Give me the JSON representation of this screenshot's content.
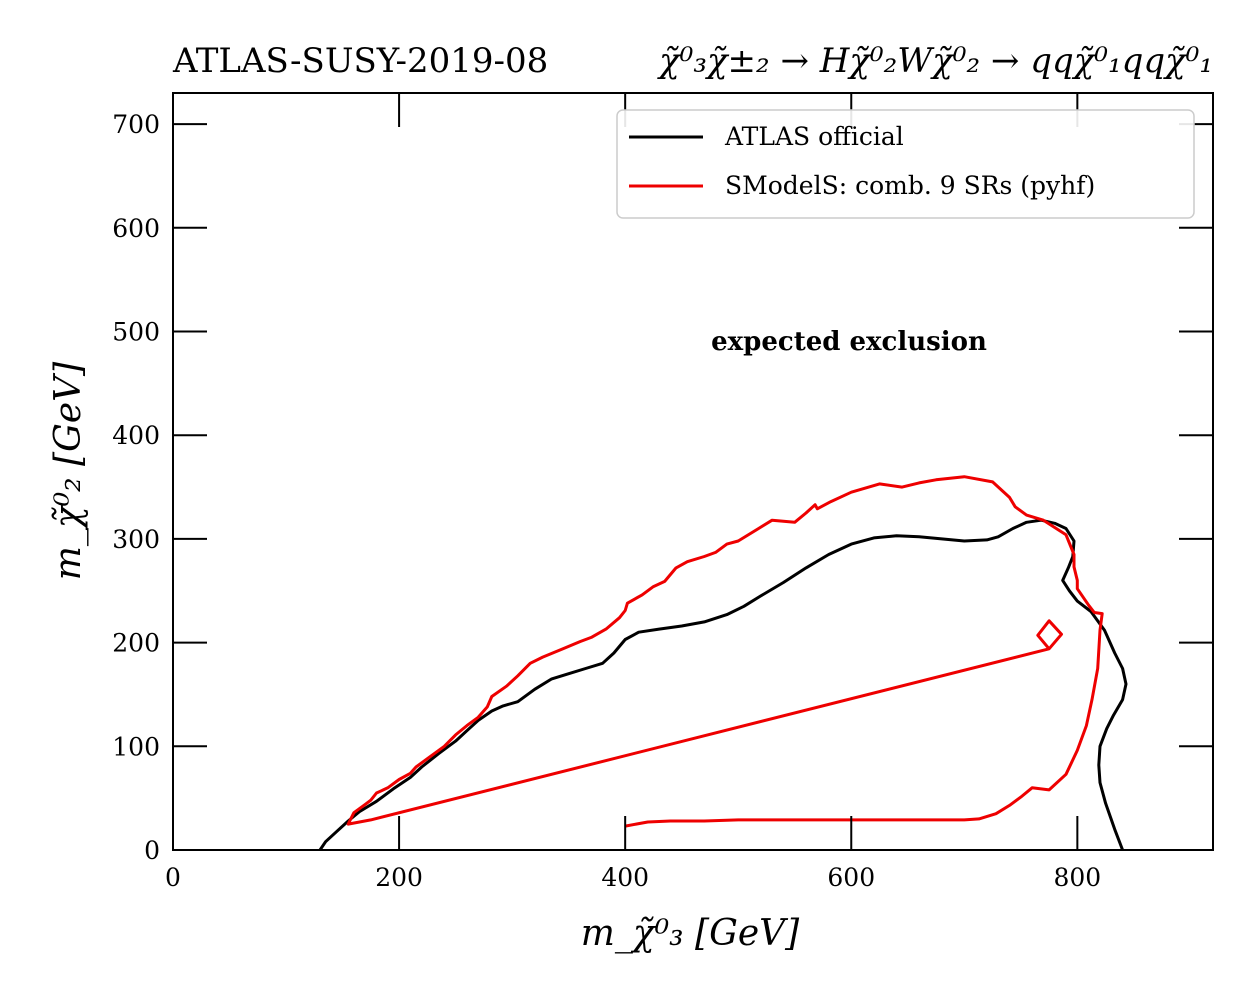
{
  "chart_data": {
    "type": "line",
    "title_left": "ATLAS-SUSY-2019-08",
    "title_right": "χ̃⁰₃χ̃±₂ → Hχ̃⁰₂Wχ̃⁰₂ → qqχ̃⁰₁qqχ̃⁰₁",
    "xlabel": "m_χ̃⁰₃ [GeV]",
    "ylabel": "m_χ̃⁰₂ [GeV]",
    "xlim": [
      0,
      920
    ],
    "ylim": [
      0,
      730
    ],
    "xticks": [
      0,
      200,
      400,
      600,
      800
    ],
    "yticks": [
      0,
      100,
      200,
      300,
      400,
      500,
      600,
      700
    ],
    "x_tick_labels": [
      "0",
      "200",
      "400",
      "600",
      "800"
    ],
    "y_tick_labels": [
      "0",
      "100",
      "200",
      "300",
      "400",
      "500",
      "600",
      "700"
    ],
    "annotation": "expected exclusion",
    "legend_position": "upper-right",
    "grid": false,
    "series": [
      {
        "name": "ATLAS official",
        "color": "#000000",
        "points": [
          [
            130,
            0
          ],
          [
            135,
            8
          ],
          [
            145,
            18
          ],
          [
            155,
            28
          ],
          [
            165,
            37
          ],
          [
            180,
            47
          ],
          [
            195,
            59
          ],
          [
            210,
            70
          ],
          [
            220,
            80
          ],
          [
            235,
            93
          ],
          [
            250,
            105
          ],
          [
            260,
            115
          ],
          [
            270,
            125
          ],
          [
            282,
            134
          ],
          [
            292,
            139
          ],
          [
            305,
            143
          ],
          [
            320,
            155
          ],
          [
            335,
            165
          ],
          [
            350,
            170
          ],
          [
            365,
            175
          ],
          [
            380,
            180
          ],
          [
            390,
            190
          ],
          [
            400,
            203
          ],
          [
            412,
            210
          ],
          [
            430,
            213
          ],
          [
            450,
            216
          ],
          [
            470,
            220
          ],
          [
            490,
            227
          ],
          [
            505,
            235
          ],
          [
            520,
            245
          ],
          [
            540,
            258
          ],
          [
            560,
            272
          ],
          [
            580,
            285
          ],
          [
            600,
            295
          ],
          [
            620,
            301
          ],
          [
            640,
            303
          ],
          [
            660,
            302
          ],
          [
            680,
            300
          ],
          [
            700,
            298
          ],
          [
            720,
            299
          ],
          [
            730,
            302
          ],
          [
            743,
            310
          ],
          [
            755,
            316
          ],
          [
            768,
            318
          ],
          [
            780,
            315
          ],
          [
            790,
            310
          ],
          [
            797,
            298
          ],
          [
            796,
            283
          ],
          [
            792,
            272
          ],
          [
            787,
            260
          ],
          [
            793,
            250
          ],
          [
            800,
            240
          ],
          [
            812,
            230
          ],
          [
            824,
            212
          ],
          [
            833,
            190
          ],
          [
            840,
            175
          ],
          [
            843,
            160
          ],
          [
            840,
            145
          ],
          [
            832,
            130
          ],
          [
            826,
            117
          ],
          [
            820,
            100
          ],
          [
            819,
            82
          ],
          [
            820,
            65
          ],
          [
            825,
            45
          ],
          [
            833,
            20
          ],
          [
            840,
            0
          ]
        ]
      },
      {
        "name": "SModelS: comb. 9 SRs (pyhf)",
        "color": "#ee0000",
        "points": [
          [
            400,
            23
          ],
          [
            420,
            27
          ],
          [
            440,
            28
          ],
          [
            470,
            28
          ],
          [
            500,
            29
          ],
          [
            550,
            29
          ],
          [
            600,
            29
          ],
          [
            650,
            29
          ],
          [
            700,
            29
          ],
          [
            713,
            30
          ],
          [
            728,
            35
          ],
          [
            740,
            43
          ],
          [
            750,
            51
          ],
          [
            760,
            60
          ],
          [
            775,
            58
          ],
          [
            790,
            73
          ],
          [
            800,
            96
          ],
          [
            808,
            120
          ],
          [
            813,
            145
          ],
          [
            818,
            175
          ],
          [
            820,
            212
          ],
          [
            822,
            228
          ],
          [
            815,
            229
          ],
          [
            810,
            236
          ],
          [
            800,
            252
          ],
          [
            800,
            260
          ],
          [
            797,
            273
          ],
          [
            797,
            285
          ],
          [
            790,
            304
          ],
          [
            770,
            318
          ],
          [
            755,
            323
          ],
          [
            745,
            331
          ],
          [
            740,
            340
          ],
          [
            725,
            355
          ],
          [
            700,
            360
          ],
          [
            675,
            357
          ],
          [
            660,
            354
          ],
          [
            645,
            350
          ],
          [
            625,
            353
          ],
          [
            600,
            345
          ],
          [
            582,
            336
          ],
          [
            570,
            329
          ],
          [
            568,
            333
          ],
          [
            560,
            325
          ],
          [
            550,
            316
          ],
          [
            530,
            318
          ],
          [
            518,
            310
          ],
          [
            500,
            298
          ],
          [
            490,
            295
          ],
          [
            480,
            287
          ],
          [
            470,
            283
          ],
          [
            455,
            278
          ],
          [
            445,
            272
          ],
          [
            435,
            259
          ],
          [
            425,
            254
          ],
          [
            415,
            246
          ],
          [
            402,
            238
          ],
          [
            400,
            231
          ],
          [
            395,
            224
          ],
          [
            383,
            213
          ],
          [
            370,
            205
          ],
          [
            360,
            201
          ],
          [
            345,
            194
          ],
          [
            327,
            186
          ],
          [
            316,
            180
          ],
          [
            305,
            168
          ],
          [
            295,
            158
          ],
          [
            282,
            148
          ],
          [
            278,
            138
          ],
          [
            270,
            128
          ],
          [
            260,
            120
          ],
          [
            250,
            111
          ],
          [
            240,
            100
          ],
          [
            225,
            88
          ],
          [
            215,
            80
          ],
          [
            210,
            74
          ],
          [
            200,
            68
          ],
          [
            190,
            60
          ],
          [
            180,
            55
          ],
          [
            175,
            48
          ],
          [
            170,
            44
          ],
          [
            160,
            36
          ],
          [
            155,
            25
          ],
          [
            175,
            29
          ],
          [
            775,
            194
          ],
          [
            786,
            208
          ],
          [
            775,
            221
          ],
          [
            765,
            207
          ],
          [
            775,
            194
          ]
        ]
      }
    ]
  }
}
